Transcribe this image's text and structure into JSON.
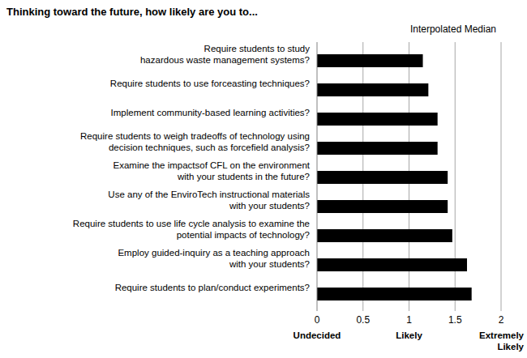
{
  "chart_data": {
    "type": "bar",
    "orientation": "horizontal",
    "title": "Thinking toward the future, how likely are you to...",
    "categories": [
      "Require students to study\nhazardous waste management systems?",
      "Require students to use forceasting techniques?",
      "Implement community-based learning activities?",
      "Require students to weigh tradeoffs of technology using\ndecision techniques, such as forcefield analysis?",
      "Examine the impactsof CFL on the environment\nwith your students in the future?",
      "Use any of the EnviroTech instructional materials\nwith your students?",
      "Require students to use life cycle analysis to examine the\npotential impacts of technology?",
      "Employ guided-inquiry as a teaching approach\nwith your students?",
      "Require students to plan/conduct experiments?"
    ],
    "series": [
      {
        "name": "Interpolated Median",
        "color": "#000000",
        "values": [
          1.15,
          1.21,
          1.31,
          1.31,
          1.42,
          1.42,
          1.47,
          1.63,
          1.68
        ]
      }
    ],
    "xlim": [
      0,
      2
    ],
    "xticks": [
      0,
      0.5,
      1,
      1.5,
      2
    ],
    "grid": true,
    "legend": "top-right",
    "annotations": [
      {
        "x": 0,
        "text": "Undecided"
      },
      {
        "x": 1,
        "text": "Likely"
      },
      {
        "x": 2,
        "text": "Extremely\nLikely"
      }
    ]
  }
}
